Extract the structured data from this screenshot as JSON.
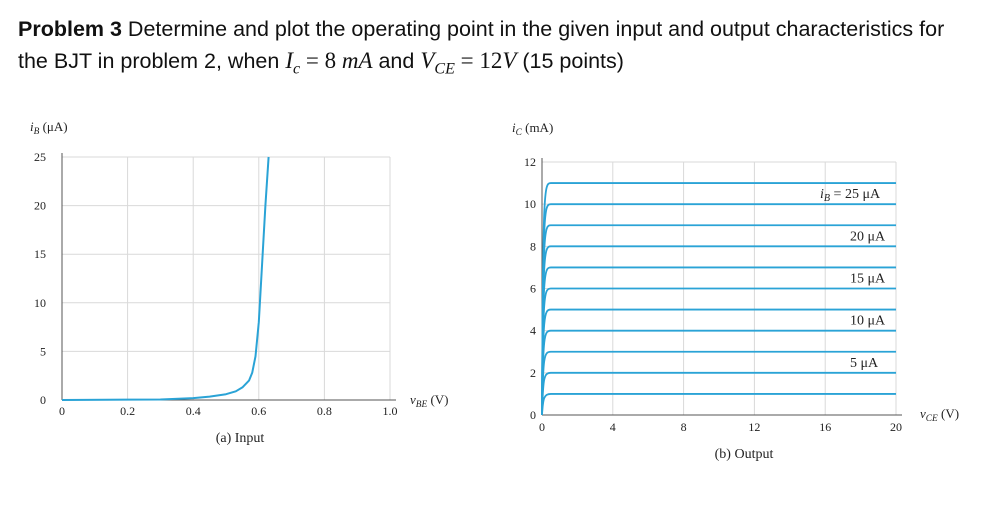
{
  "problem": {
    "label": "Problem 3",
    "text1": " Determine and plot the operating point in the given input and output characteristics for the BJT in problem 2, when ",
    "ic_symbol": "I",
    "ic_sub": "c",
    "eq1": " = 8 ",
    "ic_unit": "mA",
    "and": " and ",
    "vce_symbol": "V",
    "vce_sub": "CE",
    "eq2": " = 12",
    "vce_unit": "V",
    "points": " (15 points)"
  },
  "colors": {
    "curve": "#2aa3d6",
    "grid": "#d9d9d9",
    "axis": "#555555"
  },
  "chart_data": [
    {
      "type": "line",
      "caption": "(a) Input",
      "ylabel": "i_B (μA)",
      "xlabel": "v_BE (V)",
      "xlim": [
        0,
        1.0
      ],
      "ylim": [
        0,
        25
      ],
      "xticks": [
        "0",
        "0.2",
        "0.4",
        "0.6",
        "0.8",
        "1.0"
      ],
      "yticks": [
        "0",
        "5",
        "10",
        "15",
        "20",
        "25"
      ],
      "grid": true,
      "series": [
        {
          "x": [
            0.0,
            0.3,
            0.4,
            0.45,
            0.5,
            0.53,
            0.55,
            0.57,
            0.58,
            0.59,
            0.6,
            0.61,
            0.62,
            0.63
          ],
          "y": [
            0.0,
            0.05,
            0.2,
            0.35,
            0.6,
            0.9,
            1.3,
            2.0,
            2.8,
            4.5,
            8.0,
            14.0,
            20.0,
            25.0
          ]
        }
      ]
    },
    {
      "type": "line",
      "caption": "(b) Output",
      "ylabel": "i_C (mA)",
      "xlabel": "v_CE (V)",
      "xlim": [
        0,
        20
      ],
      "ylim": [
        0,
        12
      ],
      "xticks": [
        "0",
        "4",
        "8",
        "12",
        "16",
        "20"
      ],
      "yticks": [
        "0",
        "2",
        "4",
        "6",
        "8",
        "10",
        "12"
      ],
      "grid": true,
      "series": [
        {
          "name": "",
          "ic_mA": 1
        },
        {
          "name": "5 μA",
          "ic_mA": 2
        },
        {
          "name": "",
          "ic_mA": 3
        },
        {
          "name": "10 μA",
          "ic_mA": 4
        },
        {
          "name": "",
          "ic_mA": 5
        },
        {
          "name": "15 μA",
          "ic_mA": 6
        },
        {
          "name": "",
          "ic_mA": 7
        },
        {
          "name": "20 μA",
          "ic_mA": 8
        },
        {
          "name": "",
          "ic_mA": 9
        },
        {
          "name": "i_B = 25 μA",
          "ic_mA": 10
        },
        {
          "name": "",
          "ic_mA": 11
        }
      ]
    }
  ]
}
